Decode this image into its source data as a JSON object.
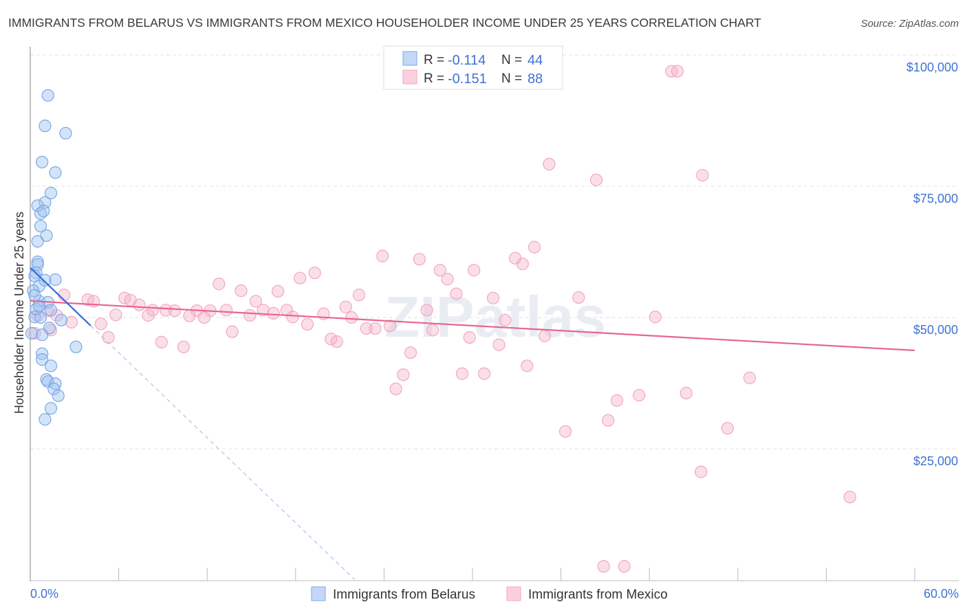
{
  "chart_data": {
    "type": "scatter",
    "title": "IMMIGRANTS FROM BELARUS VS IMMIGRANTS FROM MEXICO HOUSEHOLDER INCOME UNDER 25 YEARS CORRELATION CHART",
    "source": "Source: ZipAtlas.com",
    "ylabel": "Householder Income Under 25 years",
    "xlim": [
      0,
      60
    ],
    "ylim": [
      0,
      100000
    ],
    "x_tick_labels": {
      "min": "0.0%",
      "max": "60.0%"
    },
    "y_ticks": [
      {
        "value": 100000,
        "label": "$100,000"
      },
      {
        "value": 75000,
        "label": "$75,000"
      },
      {
        "value": 50000,
        "label": "$50,000"
      },
      {
        "value": 25000,
        "label": "$25,000"
      }
    ],
    "grid": true,
    "watermark": "ZIPatlas",
    "legend_stats": [
      {
        "r_label": "R =",
        "r": "-0.114",
        "n_label": "N =",
        "n": "44"
      },
      {
        "r_label": "R =",
        "r": "-0.151",
        "n_label": "N =",
        "n": "88"
      }
    ],
    "series": [
      {
        "name": "Immigrants from Belarus",
        "color": "#7aa7e8",
        "line_color": "#2e6bd6",
        "trend": {
          "intercept": 59500,
          "slope": -2700,
          "solid_until": 4.1,
          "dashed_until": 22
        },
        "points": [
          [
            1.2,
            92300
          ],
          [
            1.0,
            86500
          ],
          [
            2.4,
            85100
          ],
          [
            0.8,
            79600
          ],
          [
            1.7,
            77600
          ],
          [
            1.4,
            73700
          ],
          [
            1.0,
            71900
          ],
          [
            0.5,
            71300
          ],
          [
            0.7,
            69800
          ],
          [
            0.9,
            70300
          ],
          [
            0.7,
            67400
          ],
          [
            1.1,
            65600
          ],
          [
            0.5,
            64500
          ],
          [
            0.5,
            60600
          ],
          [
            0.5,
            60100
          ],
          [
            0.4,
            58500
          ],
          [
            0.3,
            57900
          ],
          [
            0.6,
            56000
          ],
          [
            1.7,
            57200
          ],
          [
            1.0,
            57100
          ],
          [
            0.2,
            55100
          ],
          [
            0.6,
            53100
          ],
          [
            1.2,
            52900
          ],
          [
            0.3,
            50100
          ],
          [
            0.7,
            50000
          ],
          [
            1.4,
            51400
          ],
          [
            2.1,
            49500
          ],
          [
            1.3,
            48000
          ],
          [
            0.8,
            46700
          ],
          [
            3.1,
            44400
          ],
          [
            0.8,
            43100
          ],
          [
            0.8,
            42000
          ],
          [
            1.4,
            40800
          ],
          [
            1.1,
            38200
          ],
          [
            1.2,
            37800
          ],
          [
            1.7,
            37400
          ],
          [
            1.6,
            36400
          ],
          [
            1.9,
            35100
          ],
          [
            1.4,
            32700
          ],
          [
            1.0,
            30600
          ],
          [
            0.1,
            47000
          ],
          [
            0.3,
            54200
          ],
          [
            0.4,
            51600
          ],
          [
            0.6,
            52200
          ]
        ]
      },
      {
        "name": "Immigrants from Mexico",
        "color": "#f4a6bf",
        "line_color": "#e8648f",
        "trend": {
          "intercept": 53150,
          "slope": -157
        },
        "points": [
          [
            43.5,
            96900
          ],
          [
            43.9,
            96900
          ],
          [
            35.2,
            79200
          ],
          [
            38.4,
            76200
          ],
          [
            45.6,
            77100
          ],
          [
            34.2,
            63400
          ],
          [
            32.9,
            61300
          ],
          [
            33.4,
            60200
          ],
          [
            23.9,
            61700
          ],
          [
            26.4,
            61100
          ],
          [
            27.8,
            59000
          ],
          [
            28.3,
            57300
          ],
          [
            30.1,
            59000
          ],
          [
            19.3,
            58500
          ],
          [
            18.3,
            57500
          ],
          [
            12.8,
            56400
          ],
          [
            14.3,
            55100
          ],
          [
            16.8,
            55000
          ],
          [
            22.3,
            54300
          ],
          [
            28.9,
            54500
          ],
          [
            31.4,
            53700
          ],
          [
            37.2,
            53800
          ],
          [
            15.3,
            53100
          ],
          [
            21.4,
            52000
          ],
          [
            26.9,
            51400
          ],
          [
            32.2,
            49500
          ],
          [
            42.4,
            50100
          ],
          [
            2.3,
            54300
          ],
          [
            3.9,
            53400
          ],
          [
            4.3,
            53100
          ],
          [
            6.4,
            53700
          ],
          [
            6.8,
            53300
          ],
          [
            7.4,
            52400
          ],
          [
            8.3,
            51400
          ],
          [
            9.2,
            51400
          ],
          [
            9.8,
            51300
          ],
          [
            11.3,
            51300
          ],
          [
            12.2,
            51300
          ],
          [
            13.3,
            51400
          ],
          [
            15.8,
            51400
          ],
          [
            16.5,
            50800
          ],
          [
            17.4,
            51400
          ],
          [
            19.9,
            50700
          ],
          [
            21.8,
            50000
          ],
          [
            14.9,
            50400
          ],
          [
            8.0,
            50400
          ],
          [
            10.8,
            50300
          ],
          [
            11.8,
            50000
          ],
          [
            17.8,
            50100
          ],
          [
            18.8,
            48700
          ],
          [
            24.4,
            48400
          ],
          [
            22.8,
            47900
          ],
          [
            23.4,
            47900
          ],
          [
            27.3,
            47600
          ],
          [
            4.8,
            48800
          ],
          [
            5.8,
            50500
          ],
          [
            2.8,
            49100
          ],
          [
            1.8,
            50400
          ],
          [
            1.2,
            51300
          ],
          [
            0.5,
            50400
          ],
          [
            1.4,
            47600
          ],
          [
            0.3,
            47000
          ],
          [
            5.3,
            46200
          ],
          [
            8.9,
            45300
          ],
          [
            10.4,
            44400
          ],
          [
            13.7,
            47300
          ],
          [
            20.4,
            45900
          ],
          [
            20.8,
            45400
          ],
          [
            29.8,
            46200
          ],
          [
            31.8,
            44800
          ],
          [
            34.9,
            46500
          ],
          [
            25.8,
            43300
          ],
          [
            25.3,
            39100
          ],
          [
            24.8,
            36400
          ],
          [
            29.3,
            39300
          ],
          [
            30.8,
            39300
          ],
          [
            33.7,
            40800
          ],
          [
            39.8,
            34200
          ],
          [
            41.3,
            35200
          ],
          [
            44.5,
            35600
          ],
          [
            39.2,
            30400
          ],
          [
            48.8,
            38500
          ],
          [
            36.3,
            28300
          ],
          [
            47.3,
            28900
          ],
          [
            45.5,
            20600
          ],
          [
            55.6,
            15800
          ],
          [
            38.9,
            2600
          ],
          [
            40.3,
            2600
          ]
        ]
      }
    ]
  }
}
